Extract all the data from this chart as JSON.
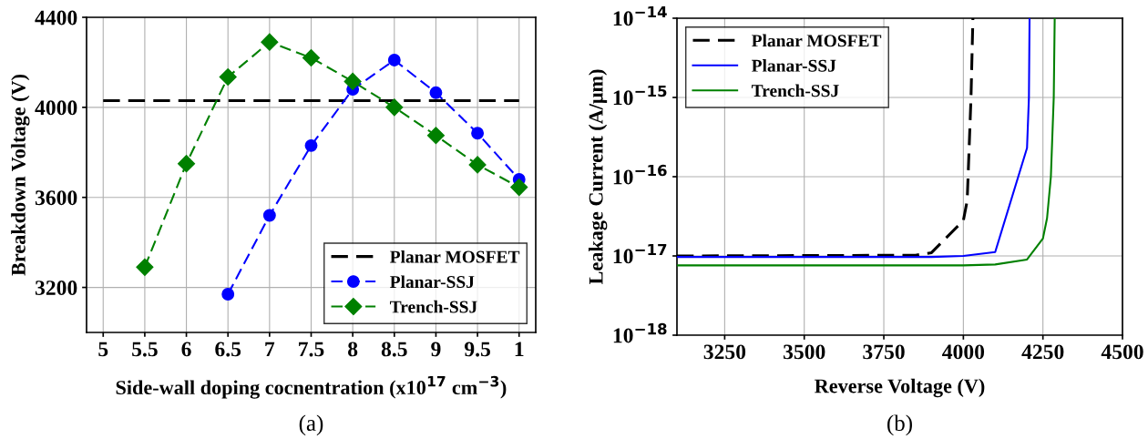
{
  "chart_data": [
    {
      "type": "line",
      "categories": [
        "5",
        "5.5",
        "6",
        "6.5",
        "7",
        "7.5",
        "8",
        "8.5",
        "9",
        "9.5",
        "1"
      ],
      "xlabel": "Side-wall doping cocnentration (x10$^{17}$ cm$^{−3}$)",
      "ylabel": "Breakdown Voltage (V)",
      "ylim": [
        3000,
        4400
      ],
      "yticks": [
        3200,
        3600,
        4000,
        4400
      ],
      "grid": true,
      "legend": "bottom right",
      "line_style": "dashed",
      "annotations": [
        "(a)"
      ],
      "series": [
        {
          "name": "Planar MOSFET",
          "color": "#000000",
          "marker": "none",
          "values": [
            4030,
            4030,
            4030,
            4030,
            4030,
            4030,
            4030,
            4030,
            4030,
            4030,
            4030
          ]
        },
        {
          "name": "Planar-SSJ",
          "color": "#0000ff",
          "marker": "circle",
          "values": [
            null,
            null,
            null,
            3170,
            3520,
            3830,
            4080,
            4210,
            4065,
            3885,
            3680
          ]
        },
        {
          "name": "Trench-SSJ",
          "color": "#008000",
          "marker": "diamond",
          "values": [
            null,
            3290,
            3750,
            4135,
            4290,
            4220,
            4115,
            4000,
            3875,
            3745,
            3645
          ]
        }
      ]
    },
    {
      "type": "line",
      "xlabel": "Reverse Voltage (V)",
      "ylabel": "Leakage Current (A/μm)",
      "log": "y",
      "xlim": [
        3100,
        4500
      ],
      "xticks": [
        3250,
        3500,
        3750,
        4000,
        4250,
        4500
      ],
      "ylim": [
        1e-18,
        1e-14
      ],
      "yticks": [
        {
          "value": 1e-18,
          "label": "10$^{−18}$"
        },
        {
          "value": 1e-17,
          "label": "10$^{−17}$"
        },
        {
          "value": 1e-16,
          "label": "10$^{−16}$"
        },
        {
          "value": 1e-15,
          "label": "10$^{−15}$"
        },
        {
          "value": 1e-14,
          "label": "10$^{−14}$"
        }
      ],
      "grid": true,
      "legend": "top left",
      "marker": "none",
      "annotations": [
        "(b)"
      ],
      "series": [
        {
          "name": "Planar MOSFET",
          "color": "#000000",
          "line_style": "dashed",
          "x": [
            3100,
            3850,
            3900,
            4000,
            4012,
            4024,
            4030
          ],
          "values": [
            1e-17,
            1.02e-17,
            1.1e-17,
            2.8e-17,
            5e-17,
            1e-15,
            1e-14
          ]
        },
        {
          "name": "Planar-SSJ",
          "color": "#0000ff",
          "line_style": "solid",
          "x": [
            3100,
            3900,
            4000,
            4100,
            4200,
            4206,
            4208
          ],
          "values": [
            9.7e-18,
            9.7e-18,
            1e-17,
            1.12e-17,
            2.3e-16,
            1e-15,
            1e-14
          ]
        },
        {
          "name": "Trench-SSJ",
          "color": "#008000",
          "line_style": "solid",
          "x": [
            3100,
            4000,
            4100,
            4200,
            4250,
            4263,
            4275,
            4284,
            4287
          ],
          "values": [
            7.6e-18,
            7.6e-18,
            7.8e-18,
            9e-18,
            1.66e-17,
            3e-17,
            1e-16,
            1e-15,
            1e-14
          ]
        }
      ]
    }
  ]
}
